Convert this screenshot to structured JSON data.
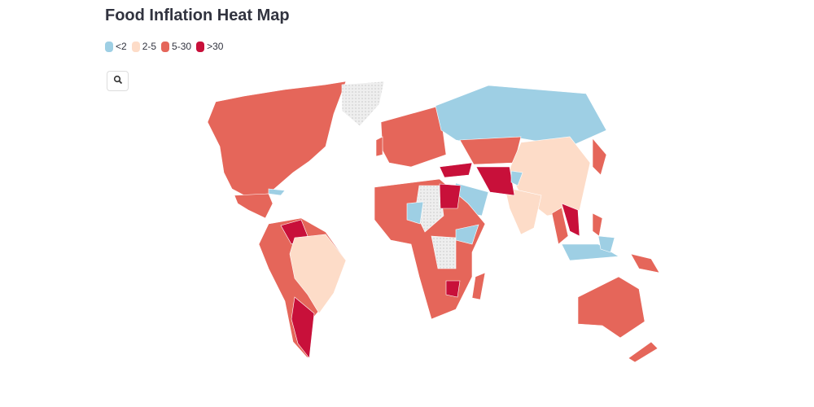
{
  "title": "Food Inflation Heat Map",
  "legend": [
    {
      "label": "<2",
      "color": "#9ecfe4"
    },
    {
      "label": "2-5",
      "color": "#fddcc8"
    },
    {
      "label": "5-30",
      "color": "#e5665a"
    },
    {
      "label": ">30",
      "color": "#c8103a"
    }
  ]
}
